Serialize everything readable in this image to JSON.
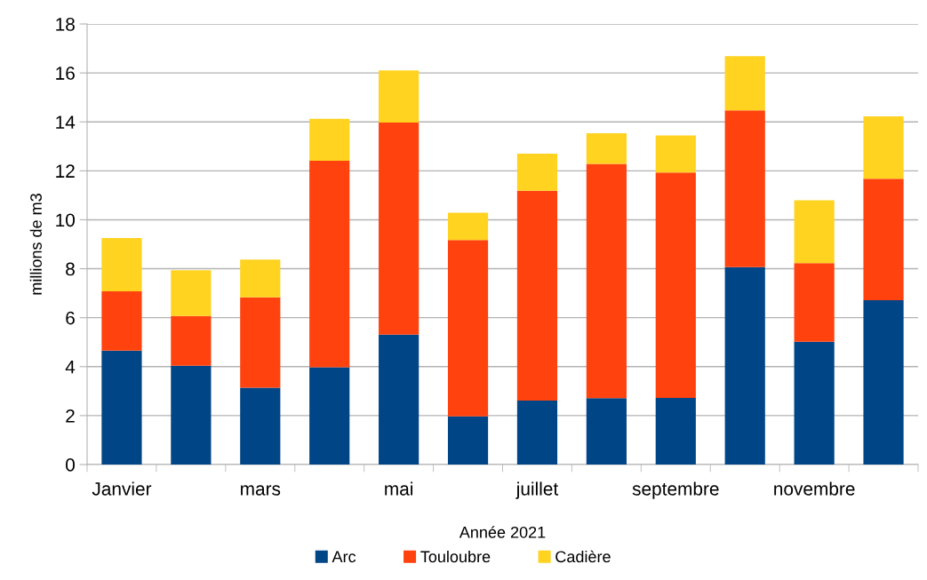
{
  "chart_data": {
    "type": "bar",
    "stacked": true,
    "xlabel": "Année 2021",
    "ylabel": "millions de m3",
    "categories": [
      "Janvier",
      null,
      "mars",
      null,
      "mai",
      null,
      "juillet",
      null,
      "septembre",
      null,
      "novembre",
      null
    ],
    "series": [
      {
        "name": "Arc",
        "color": "#004586",
        "values": [
          4.65,
          4.04,
          3.14,
          3.97,
          5.31,
          1.97,
          2.61,
          2.71,
          2.72,
          8.07,
          5.02,
          6.71
        ]
      },
      {
        "name": "Touloubre",
        "color": "#ff420e",
        "values": [
          2.43,
          2.03,
          3.69,
          8.44,
          8.66,
          7.2,
          8.58,
          9.57,
          9.21,
          6.4,
          3.21,
          4.97
        ]
      },
      {
        "name": "Cadière",
        "color": "#ffd320",
        "values": [
          2.17,
          1.87,
          1.54,
          1.72,
          2.13,
          1.12,
          1.51,
          1.26,
          1.52,
          2.21,
          2.57,
          2.55
        ]
      }
    ],
    "ylim": [
      0,
      18
    ],
    "yticks": [
      0,
      2,
      4,
      6,
      8,
      10,
      12,
      14,
      16,
      18
    ],
    "grid": "y",
    "legend": "bottom"
  }
}
